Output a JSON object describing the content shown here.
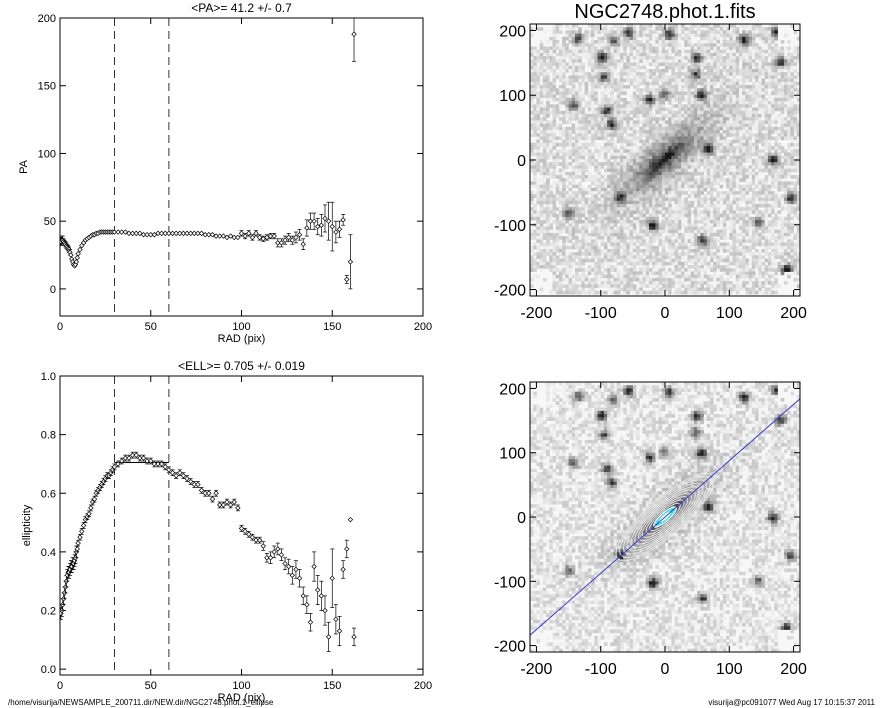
{
  "footer": {
    "left": "/home/visurija/NEWSAMPLE_200711.dir/NEW.dir/NGC2748.phot.1_ellipse",
    "right": "visurija@pc091077  Wed Aug 17 10:15:37 2011"
  },
  "chart_data": [
    {
      "type": "scatter",
      "title": "<PA>=  41.2 +/-   0.7",
      "xlabel": "RAD (pix)",
      "ylabel": "PA",
      "xlim": [
        0,
        200
      ],
      "ylim": [
        -20,
        200
      ],
      "xticks": [
        0,
        50,
        100,
        150,
        200
      ],
      "yticks": [
        0,
        50,
        100,
        150,
        200
      ],
      "vlines": [
        30,
        60
      ],
      "marker": "diamond",
      "series": [
        {
          "x": [
            0.5,
            1,
            1.5,
            2,
            2.5,
            3,
            3.5,
            4,
            4.5,
            5,
            5.5,
            6,
            6.5,
            7,
            7.5,
            8,
            8.5,
            9,
            9.5,
            10,
            11,
            12,
            13,
            14,
            15,
            16,
            17,
            18,
            19,
            20,
            21,
            22,
            23,
            24,
            25,
            26,
            27,
            28,
            29,
            30,
            32,
            34,
            36,
            38,
            40,
            42,
            44,
            46,
            48,
            50,
            52,
            54,
            56,
            58,
            60,
            62,
            64,
            66,
            68,
            70,
            72,
            74,
            76,
            78,
            80,
            82,
            84,
            86,
            88,
            90,
            92,
            94,
            96,
            98,
            100,
            102,
            104,
            106,
            108,
            110,
            112,
            114,
            116,
            118,
            120,
            122,
            124,
            126,
            128,
            130,
            132,
            134,
            136,
            138,
            140,
            142,
            144,
            146,
            148,
            150,
            152,
            154,
            156,
            158,
            160,
            162
          ],
          "y": [
            35,
            36,
            36,
            35,
            34,
            33,
            32,
            31,
            30,
            29,
            27,
            25,
            22,
            20,
            18,
            17,
            18,
            20,
            23,
            26,
            29,
            32,
            34,
            36,
            37,
            38,
            39,
            40,
            40,
            41,
            41,
            42,
            42,
            42,
            42,
            42,
            42,
            42,
            42,
            42,
            42,
            42,
            42,
            41,
            41,
            41,
            41,
            40,
            40,
            40,
            40,
            41,
            41,
            41,
            41,
            41,
            41,
            41,
            41,
            41,
            41,
            41,
            41,
            41,
            40,
            40,
            40,
            39,
            39,
            39,
            38,
            39,
            38,
            38,
            41,
            39,
            41,
            38,
            41,
            38,
            37,
            38,
            39,
            39,
            34,
            34,
            36,
            38,
            36,
            38,
            40,
            33,
            45,
            50,
            50,
            46,
            47,
            52,
            50,
            46,
            42,
            44,
            51,
            7,
            20,
            188
          ],
          "err": [
            3,
            3,
            3,
            2,
            2,
            2,
            2,
            2,
            2,
            2,
            2,
            1,
            1,
            1,
            1,
            1,
            1,
            1,
            1,
            1,
            1,
            1,
            1,
            1,
            1,
            1,
            1,
            1,
            1,
            1,
            1,
            1,
            1,
            1,
            1,
            1,
            1,
            1,
            1,
            1,
            1,
            1,
            1,
            1,
            1,
            1,
            1,
            1,
            1,
            1,
            1,
            1,
            1,
            1,
            1,
            1,
            1,
            1,
            1,
            1,
            1,
            1,
            1,
            1,
            1,
            1,
            1,
            1,
            1,
            1,
            1,
            1,
            1,
            1,
            2,
            2,
            2,
            2,
            2,
            2,
            2,
            2,
            2,
            2,
            3,
            3,
            3,
            3,
            3,
            4,
            4,
            4,
            6,
            6,
            6,
            6,
            8,
            10,
            14,
            18,
            8,
            6,
            4,
            3,
            20,
            20
          ]
        }
      ]
    },
    {
      "type": "image",
      "title": "NGC2748.phot.1.fits",
      "xlim": [
        -210,
        210
      ],
      "ylim": [
        -210,
        210
      ],
      "xticks": [
        -200,
        -100,
        0,
        100,
        200
      ],
      "yticks": [
        -200,
        -100,
        0,
        100,
        200
      ],
      "galaxy": {
        "pa_deg": 41.2,
        "ellipticity": 0.705,
        "scale_pix": 45
      }
    },
    {
      "type": "scatter",
      "title": "<ELL>= 0.705 +/-  0.019",
      "xlabel": "RAD (pix)",
      "ylabel": "ellipticity",
      "xlim": [
        0,
        200
      ],
      "ylim": [
        -0.02,
        1.0
      ],
      "xticks": [
        0,
        50,
        100,
        150,
        200
      ],
      "yticks": [
        0.0,
        0.2,
        0.4,
        0.6,
        0.8,
        1.0
      ],
      "vlines": [
        30,
        60
      ],
      "hline": {
        "y": 0.705,
        "x0": 30,
        "x1": 60
      },
      "marker": "diamond",
      "series": [
        {
          "x": [
            0.5,
            1,
            1.5,
            2,
            2.5,
            3,
            3.5,
            4,
            4.5,
            5,
            5.5,
            6,
            6.5,
            7,
            7.5,
            8,
            8.5,
            9,
            9.5,
            10,
            11,
            12,
            13,
            14,
            15,
            16,
            17,
            18,
            19,
            20,
            21,
            22,
            23,
            24,
            25,
            26,
            27,
            28,
            29,
            30,
            32,
            34,
            36,
            38,
            40,
            42,
            44,
            46,
            48,
            50,
            52,
            54,
            56,
            58,
            60,
            62,
            64,
            66,
            68,
            70,
            72,
            74,
            76,
            78,
            80,
            82,
            84,
            86,
            88,
            90,
            92,
            94,
            96,
            98,
            100,
            102,
            104,
            106,
            108,
            110,
            112,
            114,
            116,
            118,
            120,
            122,
            124,
            126,
            128,
            130,
            132,
            134,
            136,
            138,
            140,
            142,
            144,
            146,
            148,
            150,
            152,
            154,
            156,
            158,
            160,
            162
          ],
          "y": [
            0.19,
            0.2,
            0.22,
            0.24,
            0.26,
            0.28,
            0.3,
            0.32,
            0.33,
            0.33,
            0.34,
            0.35,
            0.35,
            0.36,
            0.36,
            0.37,
            0.38,
            0.4,
            0.41,
            0.43,
            0.45,
            0.47,
            0.49,
            0.51,
            0.52,
            0.53,
            0.55,
            0.57,
            0.58,
            0.6,
            0.61,
            0.62,
            0.63,
            0.64,
            0.65,
            0.66,
            0.66,
            0.67,
            0.68,
            0.69,
            0.7,
            0.71,
            0.72,
            0.72,
            0.73,
            0.73,
            0.72,
            0.72,
            0.71,
            0.71,
            0.7,
            0.7,
            0.7,
            0.69,
            0.68,
            0.67,
            0.66,
            0.67,
            0.66,
            0.65,
            0.64,
            0.63,
            0.63,
            0.61,
            0.6,
            0.6,
            0.58,
            0.6,
            0.56,
            0.56,
            0.57,
            0.56,
            0.57,
            0.55,
            0.48,
            0.47,
            0.46,
            0.45,
            0.44,
            0.44,
            0.42,
            0.38,
            0.38,
            0.4,
            0.41,
            0.39,
            0.36,
            0.35,
            0.32,
            0.34,
            0.31,
            0.25,
            0.22,
            0.16,
            0.35,
            0.27,
            0.25,
            0.2,
            0.11,
            0.31,
            0.17,
            0.13,
            0.34,
            0.41,
            0.51,
            0.11
          ],
          "err": [
            0.02,
            0.02,
            0.02,
            0.02,
            0.02,
            0.02,
            0.02,
            0.02,
            0.02,
            0.02,
            0.02,
            0.02,
            0.02,
            0.02,
            0.02,
            0.02,
            0.02,
            0.02,
            0.01,
            0.01,
            0.01,
            0.01,
            0.01,
            0.01,
            0.01,
            0.01,
            0.01,
            0.01,
            0.01,
            0.01,
            0.01,
            0.01,
            0.01,
            0.01,
            0.01,
            0.01,
            0.01,
            0.01,
            0.01,
            0.01,
            0.01,
            0.01,
            0.01,
            0.01,
            0.01,
            0.01,
            0.01,
            0.01,
            0.01,
            0.01,
            0.01,
            0.01,
            0.01,
            0.01,
            0.01,
            0.01,
            0.01,
            0.01,
            0.01,
            0.01,
            0.01,
            0.01,
            0.01,
            0.01,
            0.01,
            0.01,
            0.01,
            0.01,
            0.01,
            0.01,
            0.01,
            0.01,
            0.01,
            0.01,
            0.01,
            0.01,
            0.01,
            0.01,
            0.01,
            0.01,
            0.015,
            0.015,
            0.02,
            0.02,
            0.02,
            0.02,
            0.02,
            0.025,
            0.03,
            0.03,
            0.03,
            0.03,
            0.03,
            0.03,
            0.05,
            0.05,
            0.05,
            0.05,
            0.05,
            0.1,
            0.05,
            0.05,
            0.03,
            0.03,
            0.0,
            0.03
          ]
        }
      ]
    },
    {
      "type": "image",
      "title": "",
      "xlim": [
        -210,
        210
      ],
      "ylim": [
        -210,
        210
      ],
      "xticks": [
        -200,
        -100,
        0,
        100,
        200
      ],
      "yticks": [
        -200,
        -100,
        0,
        100,
        200
      ],
      "galaxy": {
        "pa_deg": 41.2,
        "ellipticity": 0.705,
        "scale_pix": 45
      },
      "isophotes": 12,
      "major_axis_color": "#3a3ad0",
      "isophote_color": "#e8e8e8",
      "core_color": "#40e0e0"
    }
  ]
}
